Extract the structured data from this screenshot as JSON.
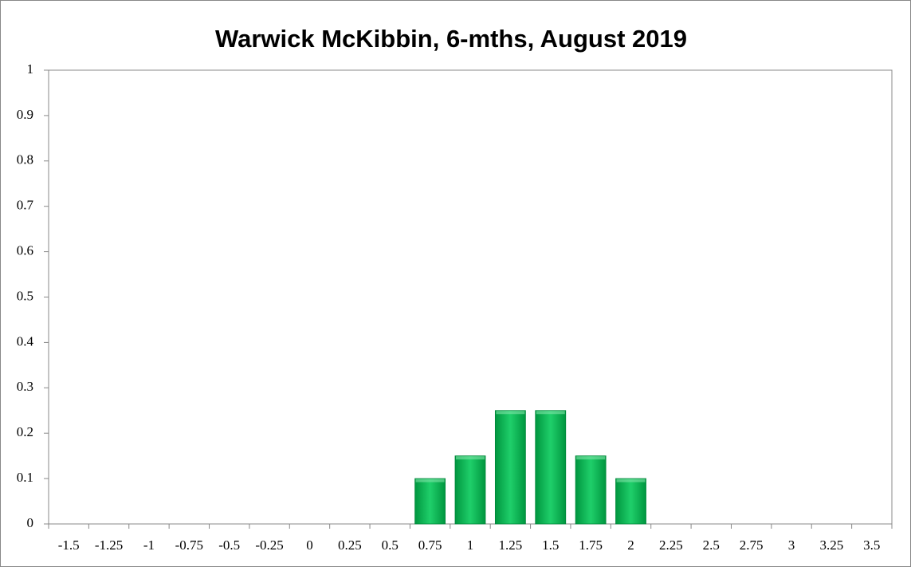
{
  "chart_data": {
    "type": "bar",
    "title": "Warwick McKibbin, 6-mths, August 2019",
    "categories": [
      "-1.5",
      "-1.25",
      "-1",
      "-0.75",
      "-0.5",
      "-0.25",
      "0",
      "0.25",
      "0.5",
      "0.75",
      "1",
      "1.25",
      "1.5",
      "1.75",
      "2",
      "2.25",
      "2.5",
      "2.75",
      "3",
      "3.25",
      "3.5"
    ],
    "values": [
      0,
      0,
      0,
      0,
      0,
      0,
      0,
      0,
      0,
      0.1,
      0.15,
      0.25,
      0.25,
      0.15,
      0.1,
      0,
      0,
      0,
      0,
      0,
      0
    ],
    "color": "#00b050",
    "ylim": [
      0,
      1
    ],
    "yticks": [
      0,
      0.1,
      0.2,
      0.3,
      0.4,
      0.5,
      0.6,
      0.7,
      0.8,
      0.9,
      1
    ],
    "grid": false
  }
}
